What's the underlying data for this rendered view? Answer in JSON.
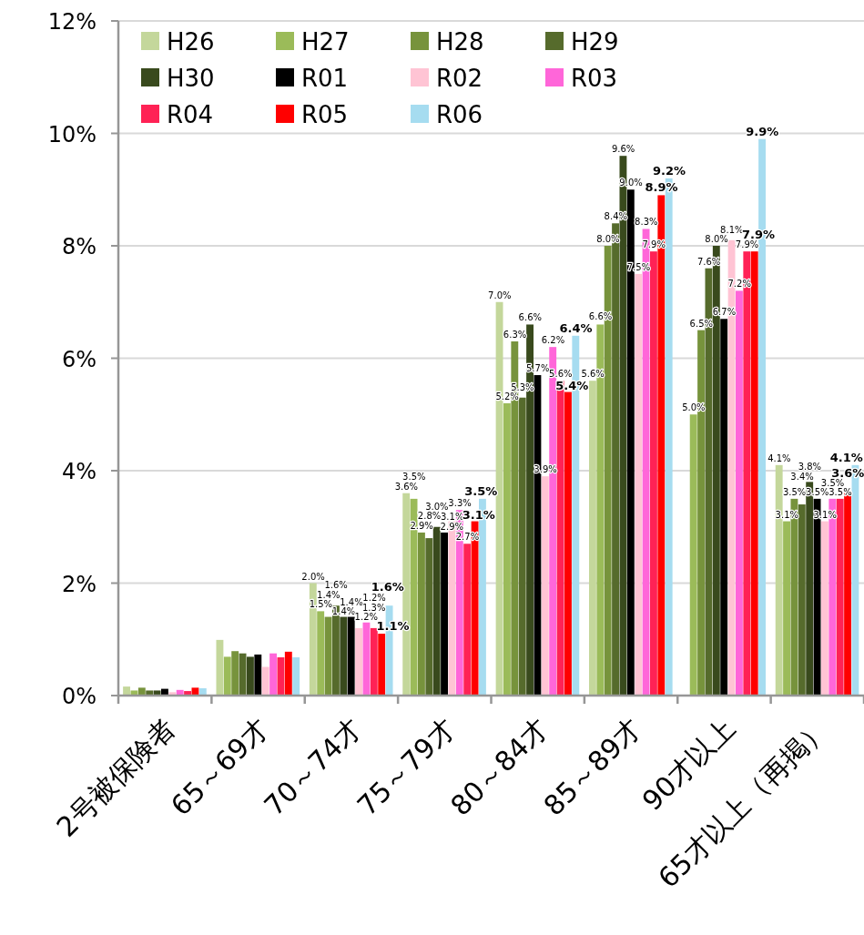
{
  "chart_data": {
    "type": "bar",
    "categories": [
      "2号被保険者",
      "65～69才",
      "70～74才",
      "75～79才",
      "80～84才",
      "85～89才",
      "90才以上",
      "65才以上（再掲）"
    ],
    "ylim": [
      0,
      12
    ],
    "yticks": [
      {
        "value": 0,
        "label": "0%"
      },
      {
        "value": 2,
        "label": "2%"
      },
      {
        "value": 4,
        "label": "4%"
      },
      {
        "value": 6,
        "label": "6%"
      },
      {
        "value": 8,
        "label": "8%"
      },
      {
        "value": 10,
        "label": "10%"
      },
      {
        "value": 12,
        "label": "12%"
      }
    ],
    "grid": "y",
    "legend": "top left",
    "series": [
      {
        "name": "H26",
        "color": "#c4d79b",
        "values": [
          0.16,
          0.99,
          2.0,
          3.6,
          7.0,
          5.6,
          null,
          4.1
        ],
        "value_labels": [
          null,
          null,
          "2.0%",
          "3.6%",
          "7.0%",
          "5.6%",
          null,
          "4.1%"
        ]
      },
      {
        "name": "H27",
        "color": "#9bbb59",
        "values": [
          0.09,
          0.69,
          1.5,
          3.5,
          5.2,
          6.6,
          5.0,
          3.1
        ],
        "value_labels": [
          null,
          null,
          "1.5%",
          "3.5%",
          "5.2%",
          "6.6%",
          "5.0%",
          "3.1%"
        ]
      },
      {
        "name": "H28",
        "color": "#77933c",
        "values": [
          0.14,
          0.79,
          1.4,
          2.9,
          6.3,
          8.0,
          6.5,
          3.5
        ],
        "value_labels": [
          null,
          null,
          "1.4%",
          "2.9%",
          "6.3%",
          "8.0%",
          "6.5%",
          "3.5%"
        ]
      },
      {
        "name": "H29",
        "color": "#566b2c",
        "values": [
          0.09,
          0.75,
          1.6,
          2.8,
          5.3,
          8.4,
          7.6,
          3.4
        ],
        "value_labels": [
          null,
          null,
          "1.6%",
          "2.8%",
          "5.3%",
          "8.4%",
          "7.6%",
          "3.4%"
        ]
      },
      {
        "name": "H30",
        "color": "#394a1d",
        "values": [
          0.09,
          0.69,
          1.4,
          3.0,
          6.6,
          9.6,
          8.0,
          3.8
        ],
        "value_labels": [
          null,
          null,
          "1.4%",
          "3.0%",
          "6.6%",
          "9.6%",
          "8.0%",
          "3.8%"
        ]
      },
      {
        "name": "R01",
        "color": "#000000",
        "values": [
          0.12,
          0.73,
          1.4,
          2.9,
          5.7,
          9.0,
          6.7,
          3.5
        ],
        "value_labels": [
          null,
          null,
          "1.4%",
          "2.9%",
          "5.7%",
          "9.0%",
          "6.7%",
          "3.5%"
        ]
      },
      {
        "name": "R02",
        "color": "#ffc4d4",
        "values": [
          0.06,
          0.51,
          1.2,
          3.1,
          3.9,
          7.5,
          8.1,
          3.1
        ],
        "value_labels": [
          null,
          null,
          "1.2%",
          "3.1%",
          "3.9%",
          "7.5%",
          "8.1%",
          "3.1%"
        ]
      },
      {
        "name": "R03",
        "color": "#ff66d9",
        "values": [
          0.1,
          0.75,
          1.3,
          3.3,
          6.2,
          8.3,
          7.2,
          3.5
        ],
        "value_labels": [
          null,
          null,
          "1.3%",
          "3.3%",
          "6.2%",
          "8.3%",
          "7.2%",
          "3.5%"
        ]
      },
      {
        "name": "R04",
        "color": "#ff2255",
        "values": [
          0.08,
          0.68,
          1.2,
          2.7,
          5.6,
          7.9,
          7.9,
          3.5
        ],
        "value_labels": [
          null,
          null,
          "1.2%",
          "2.7%",
          "5.6%",
          "7.9%",
          "7.9%",
          "3.5%"
        ]
      },
      {
        "name": "R05",
        "color": "#ff0000",
        "values": [
          0.14,
          0.78,
          1.1,
          3.1,
          5.4,
          8.9,
          7.9,
          3.6
        ],
        "value_labels": [
          null,
          null,
          "1.1%",
          "3.1%",
          "5.4%",
          "8.9%",
          "7.9%",
          "3.6%"
        ]
      },
      {
        "name": "R06",
        "color": "#a6dcf0",
        "values": [
          0.13,
          0.68,
          1.6,
          3.5,
          6.4,
          9.2,
          9.9,
          4.1
        ],
        "value_labels": [
          null,
          null,
          "1.6%",
          "3.5%",
          "6.4%",
          "9.2%",
          "9.9%",
          "4.1%"
        ]
      }
    ]
  }
}
